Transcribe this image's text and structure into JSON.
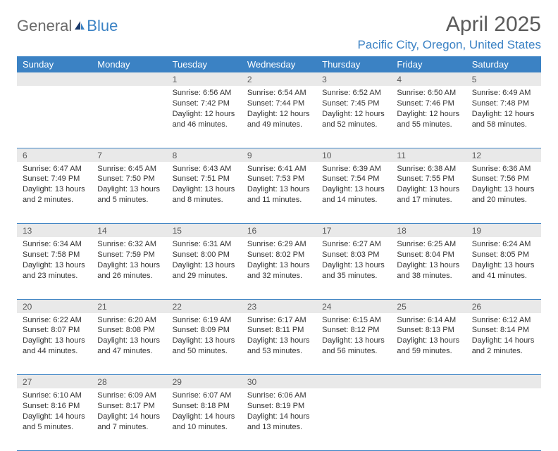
{
  "logo": {
    "part1": "General",
    "part2": "Blue"
  },
  "title": "April 2025",
  "location": "Pacific City, Oregon, United States",
  "colors": {
    "header_bg": "#3b82c4",
    "header_text": "#ffffff",
    "daynum_bg": "#e9e9e9",
    "border": "#3b82c4",
    "text": "#333333",
    "title_text": "#5a5a5a",
    "location_text": "#3b82c4",
    "logo_gray": "#6a6a6a"
  },
  "typography": {
    "title_fontsize": 30,
    "location_fontsize": 17,
    "header_fontsize": 13,
    "body_fontsize": 11
  },
  "day_headers": [
    "Sunday",
    "Monday",
    "Tuesday",
    "Wednesday",
    "Thursday",
    "Friday",
    "Saturday"
  ],
  "weeks": [
    [
      null,
      null,
      {
        "n": "1",
        "sr": "Sunrise: 6:56 AM",
        "ss": "Sunset: 7:42 PM",
        "dl": "Daylight: 12 hours and 46 minutes."
      },
      {
        "n": "2",
        "sr": "Sunrise: 6:54 AM",
        "ss": "Sunset: 7:44 PM",
        "dl": "Daylight: 12 hours and 49 minutes."
      },
      {
        "n": "3",
        "sr": "Sunrise: 6:52 AM",
        "ss": "Sunset: 7:45 PM",
        "dl": "Daylight: 12 hours and 52 minutes."
      },
      {
        "n": "4",
        "sr": "Sunrise: 6:50 AM",
        "ss": "Sunset: 7:46 PM",
        "dl": "Daylight: 12 hours and 55 minutes."
      },
      {
        "n": "5",
        "sr": "Sunrise: 6:49 AM",
        "ss": "Sunset: 7:48 PM",
        "dl": "Daylight: 12 hours and 58 minutes."
      }
    ],
    [
      {
        "n": "6",
        "sr": "Sunrise: 6:47 AM",
        "ss": "Sunset: 7:49 PM",
        "dl": "Daylight: 13 hours and 2 minutes."
      },
      {
        "n": "7",
        "sr": "Sunrise: 6:45 AM",
        "ss": "Sunset: 7:50 PM",
        "dl": "Daylight: 13 hours and 5 minutes."
      },
      {
        "n": "8",
        "sr": "Sunrise: 6:43 AM",
        "ss": "Sunset: 7:51 PM",
        "dl": "Daylight: 13 hours and 8 minutes."
      },
      {
        "n": "9",
        "sr": "Sunrise: 6:41 AM",
        "ss": "Sunset: 7:53 PM",
        "dl": "Daylight: 13 hours and 11 minutes."
      },
      {
        "n": "10",
        "sr": "Sunrise: 6:39 AM",
        "ss": "Sunset: 7:54 PM",
        "dl": "Daylight: 13 hours and 14 minutes."
      },
      {
        "n": "11",
        "sr": "Sunrise: 6:38 AM",
        "ss": "Sunset: 7:55 PM",
        "dl": "Daylight: 13 hours and 17 minutes."
      },
      {
        "n": "12",
        "sr": "Sunrise: 6:36 AM",
        "ss": "Sunset: 7:56 PM",
        "dl": "Daylight: 13 hours and 20 minutes."
      }
    ],
    [
      {
        "n": "13",
        "sr": "Sunrise: 6:34 AM",
        "ss": "Sunset: 7:58 PM",
        "dl": "Daylight: 13 hours and 23 minutes."
      },
      {
        "n": "14",
        "sr": "Sunrise: 6:32 AM",
        "ss": "Sunset: 7:59 PM",
        "dl": "Daylight: 13 hours and 26 minutes."
      },
      {
        "n": "15",
        "sr": "Sunrise: 6:31 AM",
        "ss": "Sunset: 8:00 PM",
        "dl": "Daylight: 13 hours and 29 minutes."
      },
      {
        "n": "16",
        "sr": "Sunrise: 6:29 AM",
        "ss": "Sunset: 8:02 PM",
        "dl": "Daylight: 13 hours and 32 minutes."
      },
      {
        "n": "17",
        "sr": "Sunrise: 6:27 AM",
        "ss": "Sunset: 8:03 PM",
        "dl": "Daylight: 13 hours and 35 minutes."
      },
      {
        "n": "18",
        "sr": "Sunrise: 6:25 AM",
        "ss": "Sunset: 8:04 PM",
        "dl": "Daylight: 13 hours and 38 minutes."
      },
      {
        "n": "19",
        "sr": "Sunrise: 6:24 AM",
        "ss": "Sunset: 8:05 PM",
        "dl": "Daylight: 13 hours and 41 minutes."
      }
    ],
    [
      {
        "n": "20",
        "sr": "Sunrise: 6:22 AM",
        "ss": "Sunset: 8:07 PM",
        "dl": "Daylight: 13 hours and 44 minutes."
      },
      {
        "n": "21",
        "sr": "Sunrise: 6:20 AM",
        "ss": "Sunset: 8:08 PM",
        "dl": "Daylight: 13 hours and 47 minutes."
      },
      {
        "n": "22",
        "sr": "Sunrise: 6:19 AM",
        "ss": "Sunset: 8:09 PM",
        "dl": "Daylight: 13 hours and 50 minutes."
      },
      {
        "n": "23",
        "sr": "Sunrise: 6:17 AM",
        "ss": "Sunset: 8:11 PM",
        "dl": "Daylight: 13 hours and 53 minutes."
      },
      {
        "n": "24",
        "sr": "Sunrise: 6:15 AM",
        "ss": "Sunset: 8:12 PM",
        "dl": "Daylight: 13 hours and 56 minutes."
      },
      {
        "n": "25",
        "sr": "Sunrise: 6:14 AM",
        "ss": "Sunset: 8:13 PM",
        "dl": "Daylight: 13 hours and 59 minutes."
      },
      {
        "n": "26",
        "sr": "Sunrise: 6:12 AM",
        "ss": "Sunset: 8:14 PM",
        "dl": "Daylight: 14 hours and 2 minutes."
      }
    ],
    [
      {
        "n": "27",
        "sr": "Sunrise: 6:10 AM",
        "ss": "Sunset: 8:16 PM",
        "dl": "Daylight: 14 hours and 5 minutes."
      },
      {
        "n": "28",
        "sr": "Sunrise: 6:09 AM",
        "ss": "Sunset: 8:17 PM",
        "dl": "Daylight: 14 hours and 7 minutes."
      },
      {
        "n": "29",
        "sr": "Sunrise: 6:07 AM",
        "ss": "Sunset: 8:18 PM",
        "dl": "Daylight: 14 hours and 10 minutes."
      },
      {
        "n": "30",
        "sr": "Sunrise: 6:06 AM",
        "ss": "Sunset: 8:19 PM",
        "dl": "Daylight: 14 hours and 13 minutes."
      },
      null,
      null,
      null
    ]
  ]
}
